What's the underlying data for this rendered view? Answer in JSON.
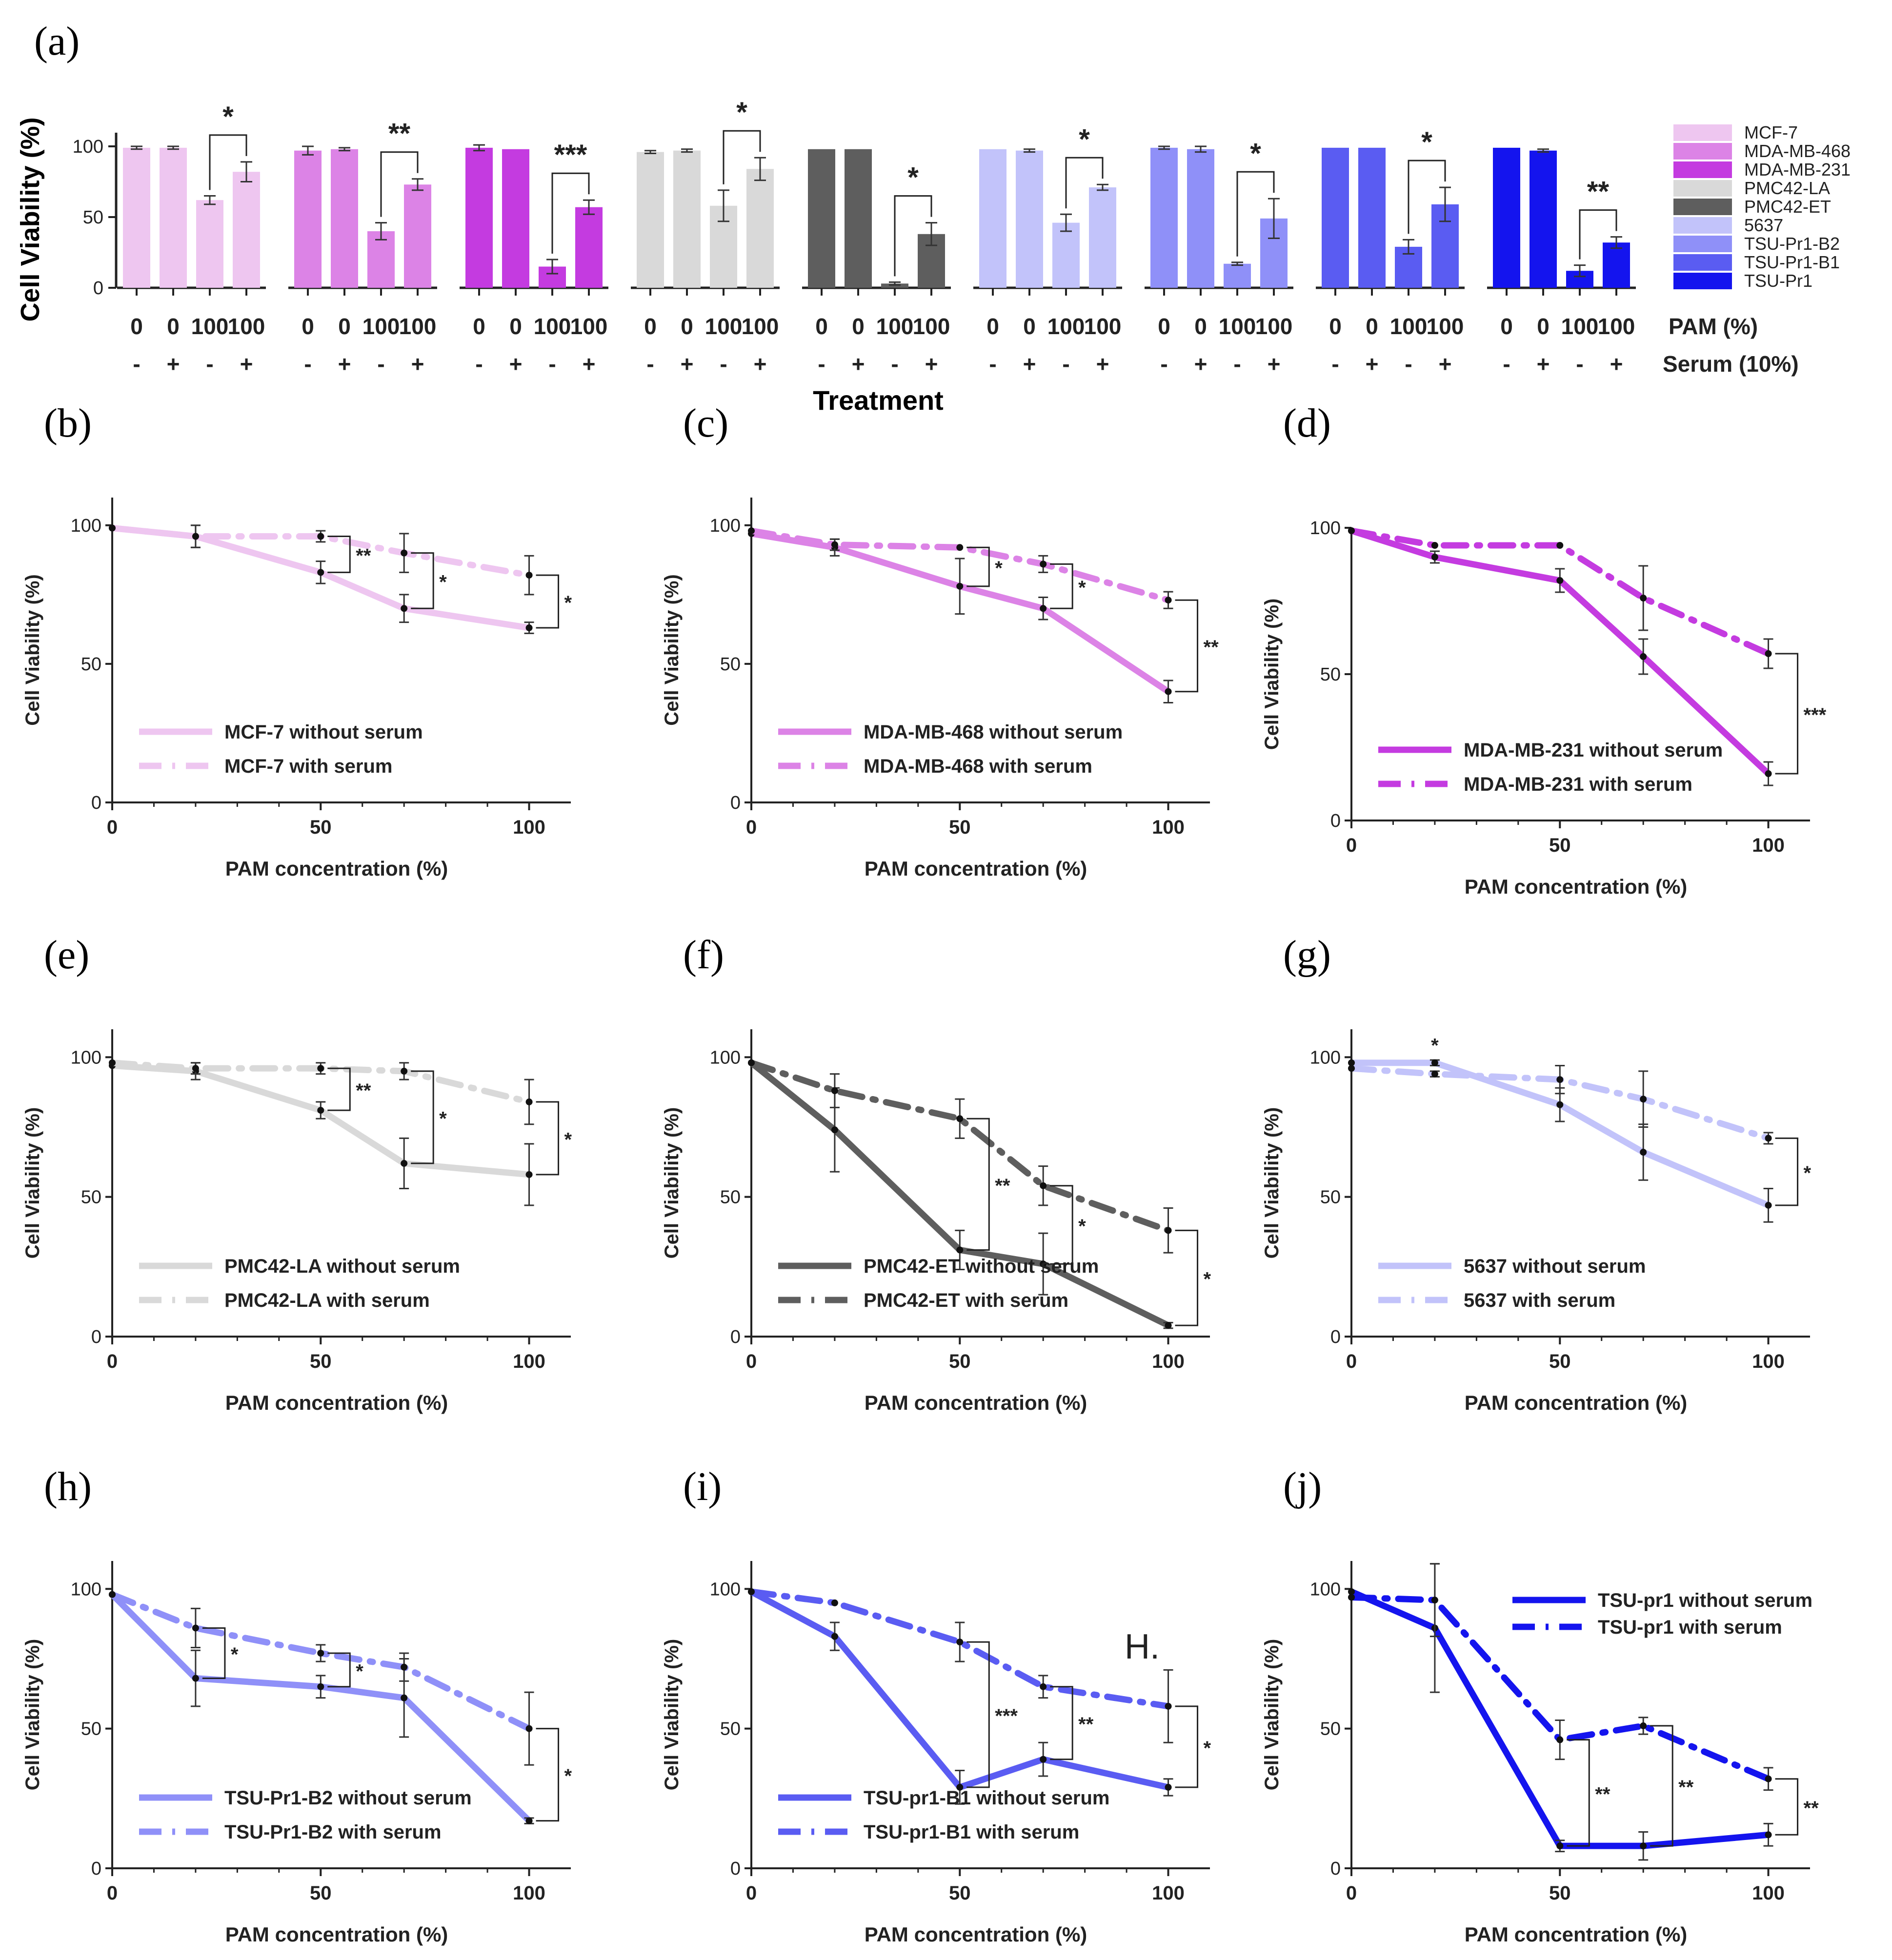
{
  "chart_data": [
    {
      "panel": "(a)",
      "type": "bar",
      "ylabel": "Cell Viability (%)",
      "xlabel": "Treatment",
      "ylim": [
        0,
        100
      ],
      "yticks": [
        "0",
        "50",
        "100"
      ],
      "row_labels": {
        "pam": "PAM (%)",
        "serum": "Serum (10%)"
      },
      "bar_pam": [
        "0",
        "0",
        "100",
        "100"
      ],
      "bar_serum": [
        "-",
        "+",
        "-",
        "+"
      ],
      "groups": [
        {
          "name": "MCF-7",
          "color": "#eec6f0",
          "values": [
            99,
            99,
            62,
            82
          ],
          "errors": [
            1,
            1,
            3,
            7
          ],
          "sig": "*"
        },
        {
          "name": "MDA-MB-468",
          "color": "#dc83e6",
          "values": [
            97,
            98,
            40,
            73
          ],
          "errors": [
            3,
            1,
            6,
            4
          ],
          "sig": "**"
        },
        {
          "name": "MDA-MB-231",
          "color": "#c43be0",
          "values": [
            99,
            98,
            15,
            57
          ],
          "errors": [
            2,
            0,
            5,
            5
          ],
          "sig": "***"
        },
        {
          "name": "PMC42-LA",
          "color": "#d9d9d9",
          "values": [
            96,
            97,
            58,
            84
          ],
          "errors": [
            1,
            1,
            11,
            8
          ],
          "sig": "*"
        },
        {
          "name": "PMC42-ET",
          "color": "#5e5e5e",
          "values": [
            98,
            98,
            3,
            38
          ],
          "errors": [
            0,
            0,
            1,
            8
          ],
          "sig": "*"
        },
        {
          "name": "5637",
          "color": "#c2c3fa",
          "values": [
            98,
            97,
            46,
            71
          ],
          "errors": [
            0,
            1,
            6,
            2
          ],
          "sig": "*"
        },
        {
          "name": "TSU-Pr1-B2",
          "color": "#8f90f8",
          "values": [
            99,
            98,
            17,
            49
          ],
          "errors": [
            1,
            2,
            1,
            14
          ],
          "sig": "*"
        },
        {
          "name": "TSU-Pr1-B1",
          "color": "#5a5cf2",
          "values": [
            99,
            99,
            29,
            59
          ],
          "errors": [
            0,
            0,
            5,
            12
          ],
          "sig": "*"
        },
        {
          "name": "TSU-Pr1",
          "color": "#1414ee",
          "values": [
            99,
            97,
            12,
            32
          ],
          "errors": [
            0,
            1,
            4,
            4
          ],
          "sig": "**"
        }
      ]
    },
    {
      "panel": "(b)",
      "type": "line",
      "color": "#eec6f0",
      "xlabel": "PAM concentration (%)",
      "ylabel": "Cell Viability (%)",
      "xlim": [
        0,
        110
      ],
      "ylim": [
        0,
        110
      ],
      "legend_pos": "bottom-left",
      "series": [
        {
          "name": "MCF-7 without serum",
          "style": "solid",
          "x": [
            0,
            20,
            50,
            70,
            100
          ],
          "y": [
            99,
            96,
            83,
            70,
            63
          ],
          "err": [
            0,
            4,
            4,
            5,
            2
          ]
        },
        {
          "name": "MCF-7 with serum",
          "style": "dashdot",
          "x": [
            0,
            20,
            50,
            70,
            100
          ],
          "y": [
            99,
            96,
            96,
            90,
            82
          ],
          "err": [
            0,
            4,
            2,
            7,
            7
          ]
        }
      ],
      "sig": [
        {
          "x": 50,
          "label": "**"
        },
        {
          "x": 70,
          "label": "*"
        },
        {
          "x": 100,
          "label": "*"
        }
      ]
    },
    {
      "panel": "(c)",
      "type": "line",
      "color": "#dc83e6",
      "xlabel": "PAM concentration (%)",
      "ylabel": "Cell Viability (%)",
      "xlim": [
        0,
        110
      ],
      "ylim": [
        0,
        110
      ],
      "legend_pos": "bottom-left",
      "series": [
        {
          "name": "MDA-MB-468 without serum",
          "style": "solid",
          "x": [
            0,
            20,
            50,
            70,
            100
          ],
          "y": [
            97,
            92,
            78,
            70,
            40
          ],
          "err": [
            0,
            3,
            10,
            4,
            4
          ]
        },
        {
          "name": "MDA-MB-468 with serum",
          "style": "dashdot",
          "x": [
            0,
            20,
            50,
            70,
            100
          ],
          "y": [
            98,
            93,
            92,
            86,
            73
          ],
          "err": [
            0,
            2,
            0,
            3,
            3
          ]
        }
      ],
      "sig": [
        {
          "x": 50,
          "label": "*"
        },
        {
          "x": 70,
          "label": "*"
        },
        {
          "x": 100,
          "label": "**"
        }
      ]
    },
    {
      "panel": "(d)",
      "type": "line",
      "color": "#c43be0",
      "xlabel": "PAM concentration (%)",
      "ylabel": "Cell Viability (%)",
      "xlim": [
        0,
        110
      ],
      "ylim": [
        0,
        100
      ],
      "legend_pos": "bottom-left",
      "series": [
        {
          "name": "MDA-MB-231 without serum",
          "style": "solid",
          "x": [
            0,
            20,
            50,
            70,
            100
          ],
          "y": [
            99,
            90,
            82,
            56,
            16
          ],
          "err": [
            0,
            2,
            4,
            6,
            4
          ]
        },
        {
          "name": "MDA-MB-231 with serum",
          "style": "dashdot",
          "x": [
            0,
            20,
            50,
            70,
            100
          ],
          "y": [
            99,
            94,
            94,
            76,
            57
          ],
          "err": [
            0,
            0,
            0,
            11,
            5
          ]
        }
      ],
      "sig": [
        {
          "x": 100,
          "label": "***"
        }
      ]
    },
    {
      "panel": "(e)",
      "type": "line",
      "color": "#d9d9d9",
      "xlabel": "PAM concentration (%)",
      "ylabel": "Cell Viability (%)",
      "xlim": [
        0,
        110
      ],
      "ylim": [
        0,
        110
      ],
      "legend_pos": "bottom-left",
      "series": [
        {
          "name": "PMC42-LA without serum",
          "style": "solid",
          "x": [
            0,
            20,
            50,
            70,
            100
          ],
          "y": [
            97,
            95,
            81,
            62,
            58
          ],
          "err": [
            0,
            3,
            3,
            9,
            11
          ]
        },
        {
          "name": "PMC42-LA with serum",
          "style": "dashdot",
          "x": [
            0,
            20,
            50,
            70,
            100
          ],
          "y": [
            98,
            96,
            96,
            95,
            84
          ],
          "err": [
            0,
            2,
            2,
            3,
            8
          ]
        }
      ],
      "sig": [
        {
          "x": 50,
          "label": "**"
        },
        {
          "x": 70,
          "label": "*"
        },
        {
          "x": 100,
          "label": "*"
        }
      ]
    },
    {
      "panel": "(f)",
      "type": "line",
      "color": "#5e5e5e",
      "xlabel": "PAM concentration (%)",
      "ylabel": "Cell Viability (%)",
      "xlim": [
        0,
        110
      ],
      "ylim": [
        0,
        110
      ],
      "legend_pos": "bottom-left",
      "series": [
        {
          "name": "PMC42-ET without serum",
          "style": "solid",
          "x": [
            0,
            20,
            50,
            70,
            100
          ],
          "y": [
            98,
            74,
            31,
            26,
            4
          ],
          "err": [
            0,
            15,
            7,
            11,
            1
          ]
        },
        {
          "name": "PMC42-ET with serum",
          "style": "dashdot",
          "x": [
            0,
            20,
            50,
            70,
            100
          ],
          "y": [
            98,
            88,
            78,
            54,
            38
          ],
          "err": [
            0,
            6,
            7,
            7,
            8
          ]
        }
      ],
      "sig": [
        {
          "x": 50,
          "label": "**"
        },
        {
          "x": 70,
          "label": "*"
        },
        {
          "x": 100,
          "label": "*"
        }
      ]
    },
    {
      "panel": "(g)",
      "type": "line",
      "color": "#c2c3fa",
      "xlabel": "PAM concentration (%)",
      "ylabel": "Cell Viability (%)",
      "xlim": [
        0,
        110
      ],
      "ylim": [
        0,
        110
      ],
      "legend_pos": "bottom-left",
      "series": [
        {
          "name": "5637 without serum",
          "style": "solid",
          "x": [
            0,
            20,
            50,
            70,
            100
          ],
          "y": [
            98,
            98,
            83,
            66,
            47
          ],
          "err": [
            0,
            1,
            6,
            10,
            6
          ]
        },
        {
          "name": "5637 with serum",
          "style": "dashdot",
          "x": [
            0,
            20,
            50,
            70,
            100
          ],
          "y": [
            96,
            94,
            92,
            85,
            71
          ],
          "err": [
            0,
            1,
            5,
            10,
            2
          ]
        }
      ],
      "sig": [
        {
          "x": 20,
          "label": "*"
        },
        {
          "x": 100,
          "label": "*"
        }
      ]
    },
    {
      "panel": "(h)",
      "type": "line",
      "color": "#8f90f8",
      "xlabel": "PAM concentration (%)",
      "ylabel": "Cell Viability (%)",
      "xlim": [
        0,
        110
      ],
      "ylim": [
        0,
        110
      ],
      "legend_pos": "bottom-left",
      "series": [
        {
          "name": "TSU-Pr1-B2 without serum",
          "style": "solid",
          "x": [
            0,
            20,
            50,
            70,
            100
          ],
          "y": [
            98,
            68,
            65,
            61,
            17
          ],
          "err": [
            0,
            10,
            4,
            14,
            1
          ]
        },
        {
          "name": "TSU-Pr1-B2 with serum",
          "style": "dashdot",
          "x": [
            0,
            20,
            50,
            70,
            100
          ],
          "y": [
            98,
            86,
            77,
            72,
            50
          ],
          "err": [
            0,
            7,
            3,
            5,
            13
          ]
        }
      ],
      "sig": [
        {
          "x": 20,
          "label": "*"
        },
        {
          "x": 50,
          "label": "*"
        },
        {
          "x": 100,
          "label": "*"
        }
      ]
    },
    {
      "panel": "(i)",
      "type": "line",
      "color": "#5a5cf2",
      "xlabel": "PAM concentration (%)",
      "ylabel": "Cell Viability (%)",
      "xlim": [
        0,
        110
      ],
      "ylim": [
        0,
        110
      ],
      "legend_pos": "bottom-left",
      "annotation": "H.",
      "series": [
        {
          "name": "TSU-pr1-B1 without serum",
          "style": "solid",
          "x": [
            0,
            20,
            50,
            70,
            100
          ],
          "y": [
            99,
            83,
            29,
            39,
            29
          ],
          "err": [
            0,
            5,
            6,
            6,
            3
          ]
        },
        {
          "name": "TSU-pr1-B1 with serum",
          "style": "dashdot",
          "x": [
            0,
            20,
            50,
            70,
            100
          ],
          "y": [
            99,
            95,
            81,
            65,
            58
          ],
          "err": [
            0,
            0,
            7,
            4,
            13
          ]
        }
      ],
      "sig": [
        {
          "x": 50,
          "label": "***"
        },
        {
          "x": 70,
          "label": "**"
        },
        {
          "x": 100,
          "label": "*"
        }
      ]
    },
    {
      "panel": "(j)",
      "type": "line",
      "color": "#1414ee",
      "xlabel": "PAM concentration (%)",
      "ylabel": "Cell Viability (%)",
      "xlim": [
        0,
        110
      ],
      "ylim": [
        0,
        110
      ],
      "legend_pos": "top-right",
      "series": [
        {
          "name": "TSU-pr1 without serum",
          "style": "solid",
          "x": [
            0,
            20,
            50,
            70,
            100
          ],
          "y": [
            99,
            86,
            8,
            8,
            12
          ],
          "err": [
            0,
            23,
            2,
            5,
            4
          ]
        },
        {
          "name": "TSU-pr1 with serum",
          "style": "dashdot",
          "x": [
            0,
            20,
            50,
            70,
            100
          ],
          "y": [
            97,
            96,
            46,
            51,
            32
          ],
          "err": [
            0,
            13,
            7,
            3,
            4
          ]
        }
      ],
      "sig": [
        {
          "x": 50,
          "label": "**"
        },
        {
          "x": 70,
          "label": "**"
        },
        {
          "x": 100,
          "label": "**"
        }
      ]
    }
  ]
}
